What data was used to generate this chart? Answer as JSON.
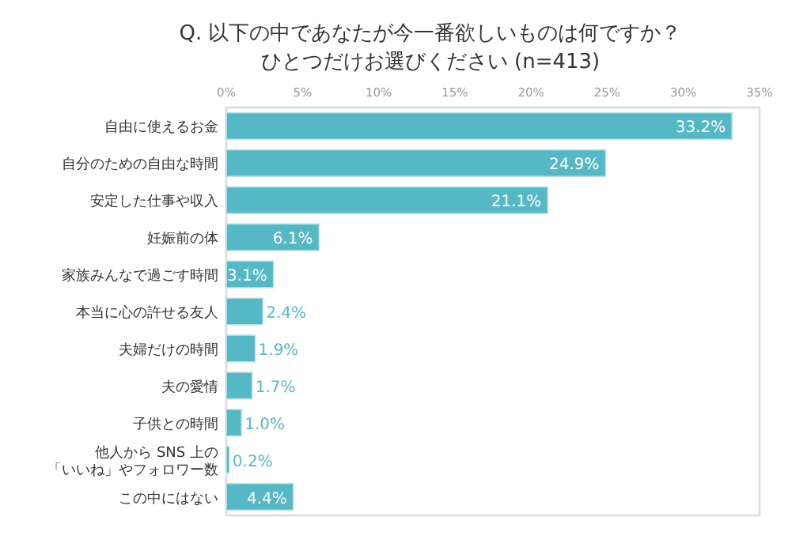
{
  "chart_data": {
    "type": "bar",
    "orientation": "horizontal",
    "title": "Q. 以下の中であなたが今一番欲しいものは何ですか？",
    "subtitle": "ひとつだけお選びください (n=413)",
    "categories": [
      "自由に使えるお金",
      "自分のための自由な時間",
      "安定した仕事や収入",
      "妊娠前の体",
      "家族みんなで過ごす時間",
      "本当に心の許せる友人",
      "夫婦だけの時間",
      "夫の愛情",
      "子供との時間",
      "他人から SNS 上の「いいね」やフォロワー数",
      "この中にはない"
    ],
    "values": [
      33.2,
      24.9,
      21.1,
      6.1,
      3.1,
      2.4,
      1.9,
      1.7,
      1.0,
      0.2,
      4.4
    ],
    "value_labels": [
      "33.2%",
      "24.9%",
      "21.1%",
      "6.1%",
      "3.1%",
      "2.4%",
      "1.9%",
      "1.7%",
      "1.0%",
      "0.2%",
      "4.4%"
    ],
    "color": "#56b8c5",
    "xlim": [
      0,
      35
    ],
    "xticks": [
      {
        "value": 0,
        "label": "0%"
      },
      {
        "value": 5,
        "label": "5%"
      },
      {
        "value": 10,
        "label": "10%"
      },
      {
        "value": 15,
        "label": "15%"
      },
      {
        "value": 20,
        "label": "20%"
      },
      {
        "value": 25,
        "label": "25%"
      },
      {
        "value": 30,
        "label": "30%"
      },
      {
        "value": 35,
        "label": "35%"
      }
    ],
    "grid": false
  }
}
